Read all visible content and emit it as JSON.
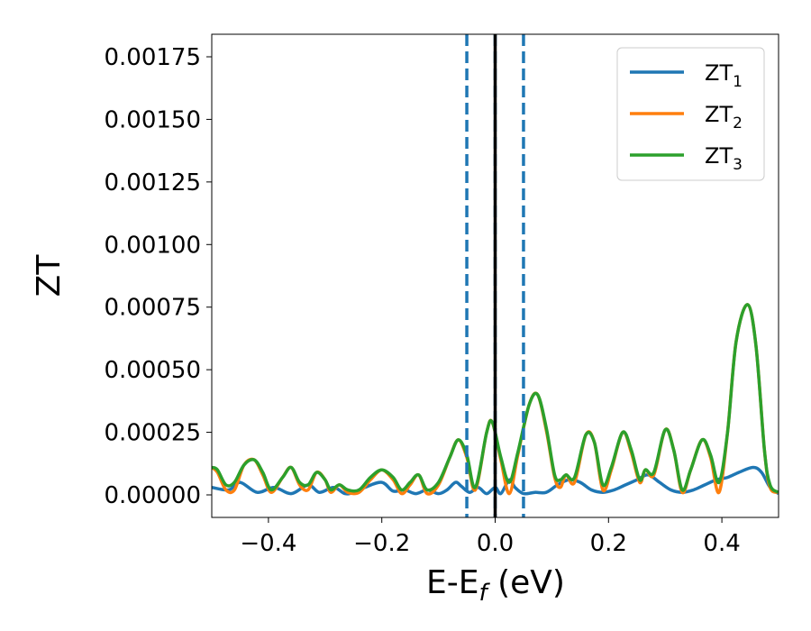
{
  "chart_data": {
    "type": "line",
    "xlabel": "E-E",
    "xlabel_sub": "f",
    "xlabel_unit": " (eV)",
    "ylabel": "ZT",
    "xlim": [
      -0.5,
      0.5
    ],
    "ylim": [
      -9e-05,
      0.00184
    ],
    "xticks": [
      -0.4,
      -0.2,
      0.0,
      0.2,
      0.4
    ],
    "xtick_labels": [
      "−0.4",
      "−0.2",
      "0.0",
      "0.2",
      "0.4"
    ],
    "yticks": [
      0,
      0.00025,
      0.0005,
      0.00075,
      0.001,
      0.00125,
      0.0015,
      0.00175
    ],
    "ytick_labels": [
      "0.00000",
      "0.00025",
      "0.00050",
      "0.00075",
      "0.00100",
      "0.00125",
      "0.00150",
      "0.00175"
    ],
    "grid": false,
    "legend_position": "top-right",
    "vlines": [
      {
        "x": -0.05,
        "style": "dashed",
        "color": "#1f77b4"
      },
      {
        "x": 0.0,
        "style": "dashed",
        "color": "#1f77b4"
      },
      {
        "x": 0.05,
        "style": "dashed",
        "color": "#1f77b4"
      },
      {
        "x": 0.0,
        "style": "solid",
        "color": "#000000"
      }
    ],
    "series": [
      {
        "name": "ZT",
        "sub": "1",
        "color": "#1f77b4",
        "x": [
          -0.5,
          -0.47,
          -0.45,
          -0.42,
          -0.39,
          -0.36,
          -0.33,
          -0.31,
          -0.285,
          -0.265,
          -0.25,
          -0.23,
          -0.2,
          -0.18,
          -0.16,
          -0.14,
          -0.12,
          -0.1,
          -0.085,
          -0.07,
          -0.06,
          -0.045,
          -0.03,
          -0.015,
          0.0,
          0.01,
          0.025,
          0.035,
          0.05,
          0.07,
          0.09,
          0.11,
          0.13,
          0.15,
          0.17,
          0.19,
          0.21,
          0.23,
          0.25,
          0.27,
          0.29,
          0.31,
          0.33,
          0.35,
          0.37,
          0.39,
          0.41,
          0.43,
          0.455,
          0.47,
          0.485,
          0.5
        ],
        "y": [
          3e-05,
          2e-05,
          5e-05,
          1e-05,
          3e-05,
          5e-06,
          4e-05,
          1e-05,
          3e-05,
          5e-06,
          1e-05,
          3e-05,
          5e-05,
          1.5e-05,
          2e-05,
          5e-06,
          2e-05,
          5e-06,
          2e-05,
          5e-05,
          3.5e-05,
          1e-05,
          3e-05,
          5e-06,
          3e-05,
          5e-06,
          6e-05,
          3e-05,
          5e-06,
          1e-05,
          1e-05,
          4e-05,
          6e-05,
          5e-05,
          2e-05,
          1e-05,
          2e-05,
          4e-05,
          6e-05,
          8e-05,
          5e-05,
          2e-05,
          1e-05,
          2e-05,
          4e-05,
          6e-05,
          7e-05,
          9e-05,
          0.00011,
          9e-05,
          3e-05,
          5e-06
        ]
      },
      {
        "name": "ZT",
        "sub": "2",
        "color": "#ff7f0e",
        "x": [
          -0.5,
          -0.49,
          -0.475,
          -0.46,
          -0.443,
          -0.425,
          -0.41,
          -0.395,
          -0.375,
          -0.36,
          -0.345,
          -0.33,
          -0.315,
          -0.3,
          -0.29,
          -0.275,
          -0.26,
          -0.24,
          -0.22,
          -0.2,
          -0.18,
          -0.165,
          -0.15,
          -0.135,
          -0.12,
          -0.1,
          -0.08,
          -0.065,
          -0.05,
          -0.035,
          -0.015,
          -0.005,
          0.01,
          0.025,
          0.04,
          0.06,
          0.075,
          0.09,
          0.105,
          0.115,
          0.125,
          0.14,
          0.16,
          0.175,
          0.19,
          0.205,
          0.225,
          0.24,
          0.255,
          0.265,
          0.28,
          0.3,
          0.315,
          0.33,
          0.345,
          0.365,
          0.38,
          0.395,
          0.41,
          0.425,
          0.445,
          0.46,
          0.475,
          0.485,
          0.5
        ],
        "y": [
          0.00011,
          9e-05,
          2e-05,
          2e-05,
          0.00012,
          0.00014,
          8e-05,
          1e-05,
          7e-05,
          0.00011,
          4e-05,
          2e-05,
          9e-05,
          6e-05,
          1e-05,
          4e-05,
          1e-05,
          1e-05,
          6e-05,
          0.0001,
          6e-05,
          5e-06,
          4e-05,
          8e-05,
          5e-06,
          4e-05,
          0.00015,
          0.00022,
          0.00015,
          2e-05,
          0.00025,
          0.00029,
          0.00014,
          5e-06,
          0.00016,
          0.00036,
          0.0004,
          0.00026,
          7e-05,
          3e-05,
          8e-05,
          5e-05,
          0.00024,
          0.00021,
          2e-05,
          0.0001,
          0.00025,
          0.00017,
          5e-05,
          0.0001,
          8e-05,
          0.00026,
          0.00018,
          1e-05,
          0.0001,
          0.00022,
          0.00015,
          1e-05,
          0.00025,
          0.00061,
          0.00076,
          0.0006,
          0.00018,
          3e-05,
          1e-05
        ]
      },
      {
        "name": "ZT",
        "sub": "3",
        "color": "#2ca02c",
        "x": [
          -0.5,
          -0.49,
          -0.475,
          -0.46,
          -0.443,
          -0.425,
          -0.41,
          -0.395,
          -0.375,
          -0.36,
          -0.345,
          -0.33,
          -0.315,
          -0.3,
          -0.29,
          -0.275,
          -0.26,
          -0.24,
          -0.22,
          -0.2,
          -0.18,
          -0.165,
          -0.15,
          -0.135,
          -0.12,
          -0.1,
          -0.08,
          -0.065,
          -0.05,
          -0.035,
          -0.015,
          -0.005,
          0.01,
          0.025,
          0.04,
          0.06,
          0.075,
          0.09,
          0.105,
          0.115,
          0.125,
          0.14,
          0.16,
          0.175,
          0.19,
          0.205,
          0.225,
          0.24,
          0.255,
          0.265,
          0.28,
          0.3,
          0.315,
          0.33,
          0.345,
          0.365,
          0.38,
          0.395,
          0.41,
          0.425,
          0.445,
          0.46,
          0.475,
          0.485,
          0.5
        ],
        "y": [
          0.00011,
          0.0001,
          4e-05,
          5e-05,
          0.00012,
          0.00014,
          9e-05,
          2e-05,
          7e-05,
          0.00011,
          5e-05,
          4e-05,
          9e-05,
          6e-05,
          2e-05,
          4e-05,
          2e-05,
          2e-05,
          7e-05,
          0.0001,
          7e-05,
          2e-05,
          5e-05,
          8e-05,
          2e-05,
          5e-05,
          0.00015,
          0.00022,
          0.00016,
          3e-05,
          0.00025,
          0.00029,
          0.00015,
          5e-05,
          0.00017,
          0.00036,
          0.0004,
          0.00027,
          8e-05,
          6e-05,
          8e-05,
          7e-05,
          0.00024,
          0.00021,
          4e-05,
          0.00011,
          0.00025,
          0.00018,
          6e-05,
          0.0001,
          9e-05,
          0.00026,
          0.00018,
          2e-05,
          0.0001,
          0.00022,
          0.00016,
          5e-05,
          0.00025,
          0.00061,
          0.00076,
          0.0006,
          0.00018,
          4e-05,
          1e-05
        ]
      }
    ]
  }
}
